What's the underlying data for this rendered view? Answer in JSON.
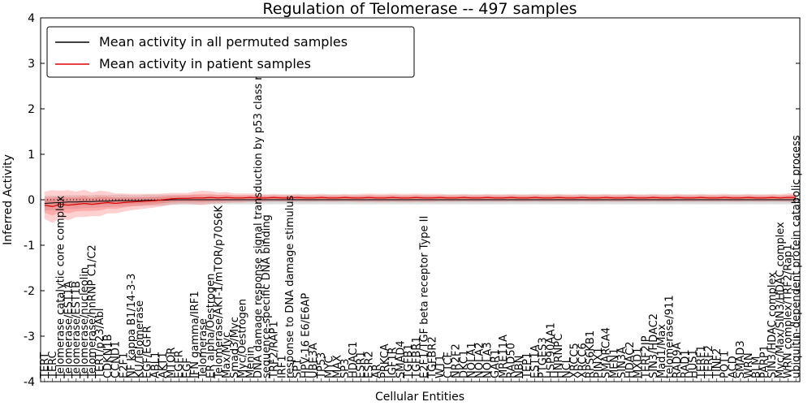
{
  "title": "Regulation of Telomerase -- 497 samples",
  "axes": {
    "xlabel": "Cellular Entities",
    "ylabel": "Inferred Activity",
    "ylim": [
      -4,
      4
    ],
    "yticks": [
      "-4",
      "-3",
      "-2",
      "-1",
      "0",
      "1",
      "2",
      "3",
      "4"
    ]
  },
  "legend": {
    "entries": [
      {
        "label": "Mean activity in all permuted samples",
        "color": "#000000"
      },
      {
        "label": "Mean activity in patient samples",
        "color": "#dd0000"
      }
    ]
  },
  "colors": {
    "permuted_line": "#000000",
    "permuted_band": "#999999",
    "patient_line": "#dd0000",
    "patient_band": "#ff5555",
    "zero_line": "#000000",
    "axis": "#000000"
  },
  "chart_data": {
    "type": "line",
    "title": "Regulation of Telomerase -- 497 samples",
    "xlabel": "Cellular Entities",
    "ylabel": "Inferred Activity",
    "ylim": [
      -4,
      4
    ],
    "yticks": [
      -4,
      -3,
      -2,
      -1,
      0,
      1,
      2,
      3,
      4
    ],
    "grid": false,
    "legend_position": "upper left",
    "zero_line": {
      "style": "dotted",
      "color": "#000000",
      "y": 0
    },
    "categories": [
      "TERT",
      "TERC",
      "Telomerase catalytic core complex",
      "Telomerase/EST1A",
      "Telomerase/EST1B",
      "Telomerase/nucleolin",
      "Telomerase/hnRNP C1/C2",
      "TERT/p23/Abl",
      "CDKN1B",
      "CCND1",
      "E2F1",
      "NF kappa B1/14-3-3",
      "KU/Telomerase",
      "EGF/EGFR",
      "ABL1",
      "AKT1",
      "MTOR",
      "EGFR",
      "EGF",
      "IFN gamma/IRF1",
      "Telomerase",
      "ER alpha/Oestrogen",
      "Telomerase/AKT-1/mTOR/p70S6K",
      "Max/Myc",
      "Smad3/Myc",
      "Myc/Oestrogen",
      "Menin",
      "DNA damage response signal transduction by p53 class mediator",
      "sequence-specific DNA binding",
      "TRF2/RAP1",
      "IRF1",
      "response to DNA damage stimulus",
      "SP1",
      "HPV-16 E6/E6AP",
      "UBE3A",
      "TP53",
      "MYC",
      "MAX",
      "SP3",
      "HDAC1",
      "ESR1",
      "ESR2",
      "AR",
      "PRKCA",
      "IGF1R",
      "SMAD4",
      "TGFB1",
      "TGFBR1",
      "E2F1/TGF beta receptor Type II",
      "TGFBR2",
      "WT1",
      "CTCF",
      "NR2F2",
      "DKC1",
      "NOLA1",
      "NOLA2",
      "NOLA3",
      "GAR1",
      "MRE11A",
      "RAD50",
      "NBN",
      "TEP1",
      "EST1A",
      "PTGES3",
      "HSP90AA1",
      "HNRNPC",
      "NCL",
      "XRCC5",
      "XRCC6",
      "RPS6KB1",
      "PINX1",
      "SMARCA4",
      "MEN1",
      "SIN3A",
      "HDAC2",
      "MXD1",
      "TERF2IP",
      "SIN3/HDAC2",
      "Mad1/Max",
      "telomerase/911",
      "RAD9A",
      "RAD1",
      "HUS1",
      "TERF1",
      "TERF2",
      "TINF2",
      "POT1",
      "ACD",
      "SMAD3",
      "WRN",
      "BLM",
      "PARP1",
      "SIN3/HDAC complex",
      "Myc/Max/SIN3/HDAC complex",
      "WRN complex/TRF2/Rap1",
      "ubiquitin-dependent protein catabolic process"
    ],
    "series": [
      {
        "name": "Mean activity in all permuted samples",
        "color": "#000000",
        "values": [
          -0.08,
          -0.07,
          -0.06,
          -0.05,
          -0.05,
          -0.04,
          -0.04,
          -0.03,
          -0.03,
          -0.02,
          -0.02,
          -0.02,
          -0.02,
          -0.01,
          -0.01,
          -0.01,
          0,
          0,
          0,
          0,
          0,
          0,
          0,
          0,
          0,
          0,
          0,
          0,
          0,
          0,
          0,
          0,
          0,
          0,
          0,
          0,
          0,
          0,
          0,
          0,
          0,
          0,
          0,
          0,
          0,
          0,
          0,
          0,
          0,
          0,
          0,
          0,
          0,
          0,
          0,
          0,
          0,
          0,
          0,
          0,
          0,
          0,
          0,
          0,
          0,
          0,
          0,
          0,
          0,
          0,
          0,
          0,
          0,
          0,
          0,
          0,
          0,
          0,
          0,
          0,
          0,
          0,
          0,
          0,
          0,
          0,
          0,
          0,
          0,
          0,
          0,
          0,
          0,
          0,
          0,
          0
        ]
      },
      {
        "name": "Mean activity in patient samples",
        "color": "#dd0000",
        "values": [
          -0.12,
          -0.15,
          -0.1,
          -0.12,
          -0.1,
          -0.08,
          -0.1,
          -0.08,
          -0.06,
          -0.08,
          -0.06,
          -0.05,
          -0.04,
          -0.03,
          -0.02,
          0.0,
          0.02,
          0.03,
          0.03,
          0.04,
          0.04,
          0.05,
          0.04,
          0.05,
          0.04,
          0.04,
          0.05,
          0.04,
          0.04,
          0.05,
          0.04,
          0.04,
          0.05,
          0.04,
          0.04,
          0.05,
          0.04,
          0.04,
          0.05,
          0.04,
          0.04,
          0.05,
          0.04,
          0.04,
          0.05,
          0.04,
          0.04,
          0.05,
          0.04,
          0.04,
          0.05,
          0.04,
          0.04,
          0.05,
          0.04,
          0.04,
          0.05,
          0.04,
          0.04,
          0.05,
          0.04,
          0.04,
          0.05,
          0.04,
          0.04,
          0.05,
          0.04,
          0.04,
          0.05,
          0.04,
          0.04,
          0.05,
          0.04,
          0.04,
          0.05,
          0.04,
          0.04,
          0.05,
          0.04,
          0.04,
          0.05,
          0.04,
          0.04,
          0.05,
          0.04,
          0.04,
          0.05,
          0.04,
          0.04,
          0.05,
          0.04,
          0.04,
          0.05,
          0.04,
          0.05,
          0.05
        ]
      }
    ],
    "bands": [
      {
        "series": "Mean activity in all permuted samples",
        "color": "#999999",
        "halfwidths": [
          0.16,
          0.16,
          0.15,
          0.15,
          0.15,
          0.14,
          0.14,
          0.14,
          0.13,
          0.13,
          0.13,
          0.12,
          0.12,
          0.12,
          0.12,
          0.12,
          0.11,
          0.11,
          0.11,
          0.11,
          0.1,
          0.1,
          0.1,
          0.1,
          0.1,
          0.1,
          0.1,
          0.1,
          0.1,
          0.1,
          0.1,
          0.1,
          0.1,
          0.1,
          0.1,
          0.1,
          0.1,
          0.1,
          0.1,
          0.1,
          0.1,
          0.1,
          0.1,
          0.1,
          0.1,
          0.1,
          0.1,
          0.1,
          0.1,
          0.1,
          0.1,
          0.1,
          0.1,
          0.1,
          0.1,
          0.1,
          0.1,
          0.1,
          0.1,
          0.1,
          0.1,
          0.1,
          0.1,
          0.1,
          0.1,
          0.1,
          0.1,
          0.1,
          0.1,
          0.1,
          0.1,
          0.1,
          0.1,
          0.1,
          0.1,
          0.1,
          0.1,
          0.1,
          0.1,
          0.1,
          0.1,
          0.1,
          0.1,
          0.1,
          0.1,
          0.1,
          0.1,
          0.1,
          0.1,
          0.1,
          0.1,
          0.1,
          0.1,
          0.1,
          0.1,
          0.1
        ]
      },
      {
        "series": "Mean activity in patient samples",
        "color": "#ff5555",
        "halfwidths": [
          0.3,
          0.36,
          0.3,
          0.33,
          0.28,
          0.3,
          0.26,
          0.28,
          0.24,
          0.22,
          0.2,
          0.18,
          0.17,
          0.16,
          0.15,
          0.14,
          0.13,
          0.12,
          0.12,
          0.14,
          0.16,
          0.14,
          0.12,
          0.12,
          0.1,
          0.1,
          0.09,
          0.09,
          0.08,
          0.08,
          0.08,
          0.08,
          0.08,
          0.08,
          0.08,
          0.08,
          0.08,
          0.08,
          0.08,
          0.08,
          0.09,
          0.09,
          0.09,
          0.09,
          0.09,
          0.09,
          0.09,
          0.09,
          0.09,
          0.09,
          0.08,
          0.08,
          0.08,
          0.08,
          0.08,
          0.08,
          0.08,
          0.08,
          0.08,
          0.08,
          0.08,
          0.08,
          0.08,
          0.08,
          0.08,
          0.08,
          0.08,
          0.08,
          0.08,
          0.08,
          0.08,
          0.08,
          0.08,
          0.08,
          0.08,
          0.08,
          0.08,
          0.08,
          0.08,
          0.08,
          0.08,
          0.08,
          0.08,
          0.08,
          0.08,
          0.08,
          0.08,
          0.08,
          0.08,
          0.08,
          0.08,
          0.08,
          0.08,
          0.08,
          0.09,
          0.1
        ]
      }
    ]
  }
}
